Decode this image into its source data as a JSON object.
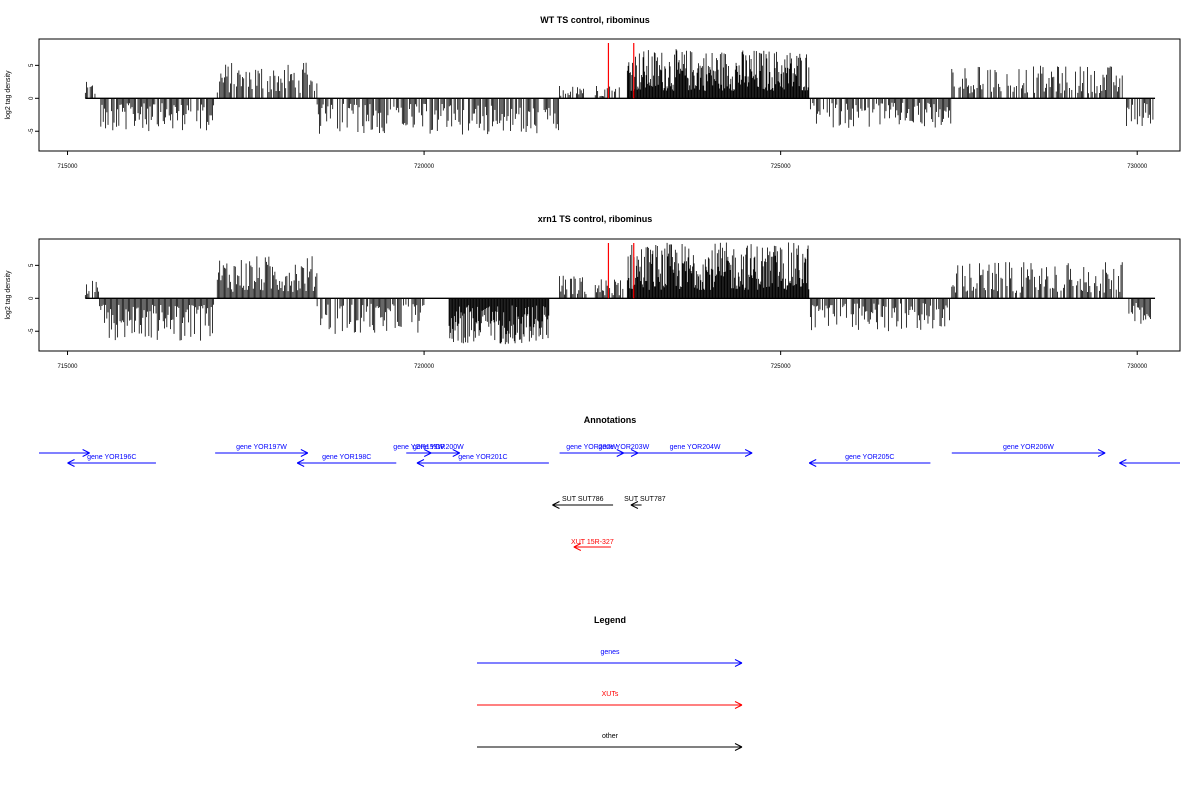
{
  "chart_data": [
    {
      "type": "bar",
      "title": "WT TS control, ribominus",
      "ylabel": "log2 tag density",
      "xlim": [
        714600,
        730600
      ],
      "ylim": [
        -8,
        9
      ],
      "x_ticks": [
        715000,
        720000,
        725000,
        730000
      ],
      "y_ticks": [
        -5,
        0,
        5
      ],
      "bar_color": "#000000",
      "marker_color": "#ff0000",
      "markers_x": [
        722585,
        722940
      ],
      "series": [
        {
          "x_range": [
            715250,
            715400
          ],
          "sign": 1,
          "max": 2.5
        },
        {
          "x_range": [
            715450,
            717050
          ],
          "sign": -1,
          "max": 5.0
        },
        {
          "x_range": [
            717100,
            718500
          ],
          "sign": 1,
          "max": 5.5
        },
        {
          "x_range": [
            718500,
            720000
          ],
          "sign": -1,
          "max": 5.5
        },
        {
          "x_range": [
            720000,
            721900
          ],
          "sign": -1,
          "max": 5.5
        },
        {
          "x_range": [
            721900,
            722250
          ],
          "sign": 1,
          "max": 2.5
        },
        {
          "x_range": [
            722400,
            722750
          ],
          "sign": 1,
          "max": 2.0
        },
        {
          "x_range": [
            722850,
            725400
          ],
          "sign": 1,
          "max": 7.5
        },
        {
          "x_range": [
            725400,
            727400
          ],
          "sign": -1,
          "max": 4.5
        },
        {
          "x_range": [
            727400,
            729800
          ],
          "sign": 1,
          "max": 5.0
        },
        {
          "x_range": [
            729850,
            730250
          ],
          "sign": -1,
          "max": 4.5
        }
      ]
    },
    {
      "type": "bar",
      "title": "xrn1 TS control, ribominus",
      "ylabel": "log2 tag density",
      "xlim": [
        714600,
        730600
      ],
      "ylim": [
        -8,
        9
      ],
      "x_ticks": [
        715000,
        720000,
        725000,
        730000
      ],
      "y_ticks": [
        -5,
        0,
        5
      ],
      "bar_color": "#000000",
      "marker_color": "#ff0000",
      "markers_x": [
        722585,
        722940
      ],
      "series": [
        {
          "x_range": [
            715250,
            715450
          ],
          "sign": 1,
          "max": 3.0
        },
        {
          "x_range": [
            715450,
            717050
          ],
          "sign": -1,
          "max": 6.5
        },
        {
          "x_range": [
            717100,
            718500
          ],
          "sign": 1,
          "max": 6.5
        },
        {
          "x_range": [
            718500,
            720000
          ],
          "sign": -1,
          "max": 5.5
        },
        {
          "x_range": [
            720350,
            721750
          ],
          "sign": -1,
          "max": 7.0
        },
        {
          "x_range": [
            721900,
            722300
          ],
          "sign": 1,
          "max": 3.5
        },
        {
          "x_range": [
            722400,
            722800
          ],
          "sign": 1,
          "max": 3.0
        },
        {
          "x_range": [
            722850,
            725400
          ],
          "sign": 1,
          "max": 8.5
        },
        {
          "x_range": [
            725400,
            727400
          ],
          "sign": -1,
          "max": 5.0
        },
        {
          "x_range": [
            727400,
            729800
          ],
          "sign": 1,
          "max": 5.5
        },
        {
          "x_range": [
            729850,
            730250
          ],
          "sign": -1,
          "max": 4.5
        }
      ]
    }
  ],
  "annotations": {
    "title": "Annotations",
    "xlim": [
      714600,
      730600
    ],
    "genes_color": "#0000ff",
    "xuts_color": "#ff0000",
    "other_color": "#000000",
    "genes": [
      {
        "label": "",
        "start": 714600,
        "end": 715310,
        "strand": "+",
        "row": 0
      },
      {
        "label": "gene YOR196C",
        "start": 716240,
        "end": 715000,
        "strand": "-",
        "row": 1
      },
      {
        "label": "gene YOR197W",
        "start": 717070,
        "end": 718370,
        "strand": "+",
        "row": 0
      },
      {
        "label": "gene YOR198C",
        "start": 719610,
        "end": 718220,
        "strand": "-",
        "row": 1
      },
      {
        "label": "gene YOR199W",
        "start": 719750,
        "end": 720100,
        "strand": "+",
        "row": 0
      },
      {
        "label": "gene YOR200W",
        "start": 719900,
        "end": 720500,
        "strand": "+",
        "row": 0
      },
      {
        "label": "gene YOR201C",
        "start": 721750,
        "end": 719900,
        "strand": "-",
        "row": 1
      },
      {
        "label": "gene YOR202W",
        "start": 721900,
        "end": 722800,
        "strand": "+",
        "row": 0
      },
      {
        "label": "gene YOR203W",
        "start": 722600,
        "end": 723000,
        "strand": "+",
        "row": 0
      },
      {
        "label": "gene YOR204W",
        "start": 723000,
        "end": 724600,
        "strand": "+",
        "row": 0
      },
      {
        "label": "gene YOR205C",
        "start": 727100,
        "end": 725400,
        "strand": "-",
        "row": 1
      },
      {
        "label": "gene YOR206W",
        "start": 727400,
        "end": 729550,
        "strand": "+",
        "row": 0
      },
      {
        "label": "",
        "start": 730600,
        "end": 729750,
        "strand": "-",
        "row": 1
      }
    ],
    "suts": [
      {
        "label": "SUT SUT786",
        "start": 722650,
        "end": 721800,
        "strand": "-"
      },
      {
        "label": "SUT SUT787",
        "start": 723050,
        "end": 722900,
        "strand": "-"
      }
    ],
    "xuts": [
      {
        "label": "XUT 15R-327",
        "start": 722620,
        "end": 722100,
        "strand": "-"
      }
    ]
  },
  "legend": {
    "title": "Legend",
    "items": [
      {
        "label": "genes",
        "color": "#0000ff"
      },
      {
        "label": "XUTs",
        "color": "#ff0000"
      },
      {
        "label": "other",
        "color": "#000000"
      }
    ]
  }
}
